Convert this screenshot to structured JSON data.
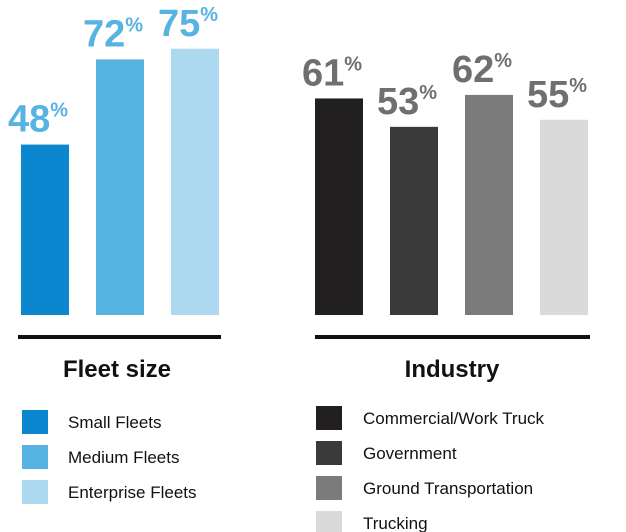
{
  "chart_data": [
    {
      "type": "bar",
      "title": "Fleet size",
      "categories": [
        "Small Fleets",
        "Medium Fleets",
        "Enterprise Fleets"
      ],
      "values": [
        48,
        72,
        75
      ],
      "value_suffix": "%",
      "ylim": [
        0,
        100
      ],
      "grid": false,
      "legend_position": "bottom",
      "colors": [
        "#0a87cf",
        "#56b3e2",
        "#acd8f0"
      ],
      "label_color": "#56b3e2"
    },
    {
      "type": "bar",
      "title": "Industry",
      "categories": [
        "Commercial/Work Truck",
        "Government",
        "Ground Transportation",
        "Trucking"
      ],
      "values": [
        61,
        53,
        62,
        55
      ],
      "value_suffix": "%",
      "ylim": [
        0,
        100
      ],
      "grid": false,
      "legend_position": "bottom",
      "colors": [
        "#221f20",
        "#3a3a3a",
        "#7a7b7a",
        "#d9dad9"
      ],
      "label_color": "#6e6f6e"
    }
  ]
}
